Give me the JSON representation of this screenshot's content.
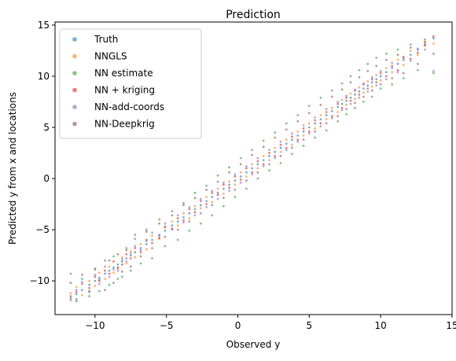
{
  "chart_data": {
    "type": "scatter",
    "title": "Prediction",
    "xlabel": "Observed y",
    "ylabel": "Predicted y from x and locations",
    "xlim": [
      -12.8,
      15.0
    ],
    "ylim": [
      -13.3,
      15.3
    ],
    "xticks": [
      -10,
      -5,
      0,
      5,
      10,
      15
    ],
    "yticks": [
      -10,
      -5,
      0,
      5,
      10,
      15
    ],
    "grid": false,
    "legend_position": "top-left",
    "x": [
      -11.7,
      -11.3,
      -10.9,
      -10.4,
      -10.0,
      -9.7,
      -9.3,
      -9.0,
      -8.7,
      -8.4,
      -8.1,
      -7.8,
      -7.5,
      -7.2,
      -6.8,
      -6.4,
      -6.0,
      -5.5,
      -5.1,
      -4.6,
      -4.2,
      -3.8,
      -3.4,
      -3.0,
      -2.6,
      -2.2,
      -1.8,
      -1.4,
      -1.0,
      -0.6,
      -0.2,
      0.2,
      0.6,
      1.0,
      1.4,
      1.8,
      2.2,
      2.6,
      3.0,
      3.4,
      3.8,
      4.2,
      4.6,
      5.0,
      5.4,
      5.8,
      6.2,
      6.6,
      7.0,
      7.3,
      7.6,
      7.9,
      8.2,
      8.5,
      8.8,
      9.1,
      9.4,
      9.7,
      10.0,
      10.4,
      10.8,
      11.2,
      11.6,
      12.1,
      12.6,
      13.1,
      13.7
    ],
    "series": [
      {
        "name": "Truth",
        "color": "#1f77b4",
        "values": [
          -11.7,
          -11.3,
          -10.9,
          -10.4,
          -10.0,
          -9.7,
          -9.3,
          -9.0,
          -8.7,
          -8.4,
          -8.1,
          -7.8,
          -7.5,
          -7.2,
          -6.8,
          -6.4,
          -6.0,
          -5.5,
          -5.1,
          -4.6,
          -4.2,
          -3.8,
          -3.4,
          -3.0,
          -2.6,
          -2.2,
          -1.8,
          -1.4,
          -1.0,
          -0.6,
          -0.2,
          0.2,
          0.6,
          1.0,
          1.4,
          1.8,
          2.2,
          2.6,
          3.0,
          3.4,
          3.8,
          4.2,
          4.6,
          5.0,
          5.4,
          5.8,
          6.2,
          6.6,
          7.0,
          7.3,
          7.6,
          7.9,
          8.2,
          8.5,
          8.8,
          9.1,
          9.4,
          9.7,
          10.0,
          10.4,
          10.8,
          11.2,
          11.6,
          12.1,
          12.6,
          13.1,
          13.7
        ]
      },
      {
        "name": "NNGLS",
        "color": "#ff7f0e",
        "values": [
          -11.2,
          -10.6,
          -11.4,
          -10.0,
          -10.5,
          -9.2,
          -9.8,
          -8.6,
          -9.2,
          -8.8,
          -7.7,
          -8.3,
          -7.1,
          -7.7,
          -6.4,
          -6.9,
          -5.6,
          -5.9,
          -4.8,
          -4.2,
          -4.6,
          -3.4,
          -3.9,
          -2.7,
          -2.9,
          -1.8,
          -2.3,
          -1.0,
          -1.5,
          -0.3,
          -0.6,
          0.6,
          0.2,
          1.4,
          1.0,
          2.2,
          1.8,
          3.0,
          2.6,
          3.8,
          3.3,
          4.6,
          4.2,
          5.4,
          4.9,
          6.2,
          5.8,
          6.9,
          6.5,
          7.7,
          7.2,
          8.3,
          7.8,
          8.9,
          8.4,
          9.5,
          9.0,
          10.1,
          9.6,
          10.8,
          10.4,
          11.6,
          11.1,
          12.5,
          12.1,
          13.4,
          13.2
        ]
      },
      {
        "name": "NN estimate",
        "color": "#2ca02c",
        "values": [
          -9.3,
          -12.0,
          -9.8,
          -11.5,
          -8.9,
          -11.0,
          -8.0,
          -10.4,
          -7.6,
          -9.8,
          -9.6,
          -6.8,
          -9.0,
          -5.9,
          -8.3,
          -5.0,
          -7.8,
          -4.0,
          -6.6,
          -3.2,
          -6.0,
          -2.4,
          -5.1,
          -1.4,
          -4.4,
          -0.7,
          -3.6,
          0.3,
          -2.7,
          1.1,
          -1.8,
          2.0,
          -1.0,
          2.8,
          0.0,
          3.7,
          0.8,
          4.5,
          1.5,
          5.4,
          2.4,
          6.2,
          3.2,
          7.1,
          4.0,
          7.9,
          4.7,
          8.6,
          5.6,
          9.3,
          6.3,
          10.0,
          6.9,
          10.6,
          7.5,
          11.2,
          8.0,
          11.8,
          8.8,
          12.2,
          9.2,
          12.6,
          9.8,
          13.1,
          10.6,
          13.6,
          10.3
        ]
      },
      {
        "name": "NN + kriging",
        "color": "#d62728",
        "values": [
          -11.5,
          -11.1,
          -10.3,
          -10.7,
          -9.6,
          -10.0,
          -9.0,
          -9.3,
          -8.1,
          -8.7,
          -8.4,
          -7.4,
          -7.8,
          -6.8,
          -7.2,
          -6.0,
          -6.3,
          -5.8,
          -4.7,
          -4.9,
          -3.9,
          -4.1,
          -3.0,
          -3.3,
          -2.2,
          -2.5,
          -1.4,
          -1.6,
          -0.6,
          -0.9,
          0.2,
          -0.1,
          1.0,
          0.6,
          1.7,
          1.4,
          2.5,
          2.2,
          3.3,
          3.0,
          4.1,
          3.8,
          4.9,
          4.6,
          5.7,
          5.4,
          6.5,
          6.1,
          7.3,
          6.9,
          7.9,
          7.6,
          8.6,
          8.2,
          9.2,
          8.8,
          9.7,
          9.4,
          10.3,
          10.0,
          11.0,
          10.6,
          11.8,
          11.7,
          12.3,
          13.0,
          13.9
        ]
      },
      {
        "name": "NN-add-coords",
        "color": "#9467bd",
        "values": [
          -11.9,
          -10.9,
          -10.1,
          -11.1,
          -9.4,
          -10.3,
          -8.6,
          -9.6,
          -8.9,
          -9.0,
          -7.9,
          -8.1,
          -7.3,
          -6.6,
          -7.0,
          -6.1,
          -5.3,
          -5.6,
          -4.4,
          -5.0,
          -3.6,
          -4.3,
          -2.8,
          -3.6,
          -2.0,
          -2.8,
          -1.2,
          -2.0,
          -0.4,
          -1.2,
          0.4,
          -0.4,
          1.2,
          0.4,
          2.0,
          1.2,
          2.8,
          2.0,
          3.6,
          2.8,
          4.4,
          3.6,
          5.2,
          4.4,
          6.0,
          5.1,
          6.8,
          5.9,
          7.5,
          6.7,
          8.1,
          7.3,
          8.7,
          7.9,
          9.3,
          8.5,
          9.9,
          9.1,
          10.5,
          9.7,
          11.3,
          10.4,
          11.9,
          11.5,
          12.7,
          12.6,
          10.5
        ]
      },
      {
        "name": "NN-Deepkrig",
        "color": "#8c564b",
        "values": [
          -10.2,
          -11.8,
          -9.4,
          -11.0,
          -8.8,
          -9.9,
          -10.9,
          -8.0,
          -10.2,
          -7.4,
          -9.1,
          -7.0,
          -8.6,
          -5.5,
          -7.6,
          -5.2,
          -6.8,
          -4.4,
          -5.7,
          -3.6,
          -5.0,
          -2.6,
          -4.2,
          -1.9,
          -3.4,
          -1.1,
          -2.6,
          -0.3,
          -1.9,
          0.6,
          -1.1,
          1.4,
          -0.2,
          2.3,
          0.6,
          3.1,
          1.4,
          4.0,
          2.2,
          4.8,
          3.0,
          5.6,
          3.8,
          6.4,
          4.6,
          7.2,
          5.4,
          8.0,
          6.1,
          8.7,
          6.8,
          9.4,
          7.4,
          9.9,
          8.0,
          10.5,
          8.6,
          11.0,
          9.2,
          11.6,
          9.8,
          12.1,
          10.3,
          12.8,
          11.2,
          13.3,
          12.2
        ]
      }
    ]
  }
}
